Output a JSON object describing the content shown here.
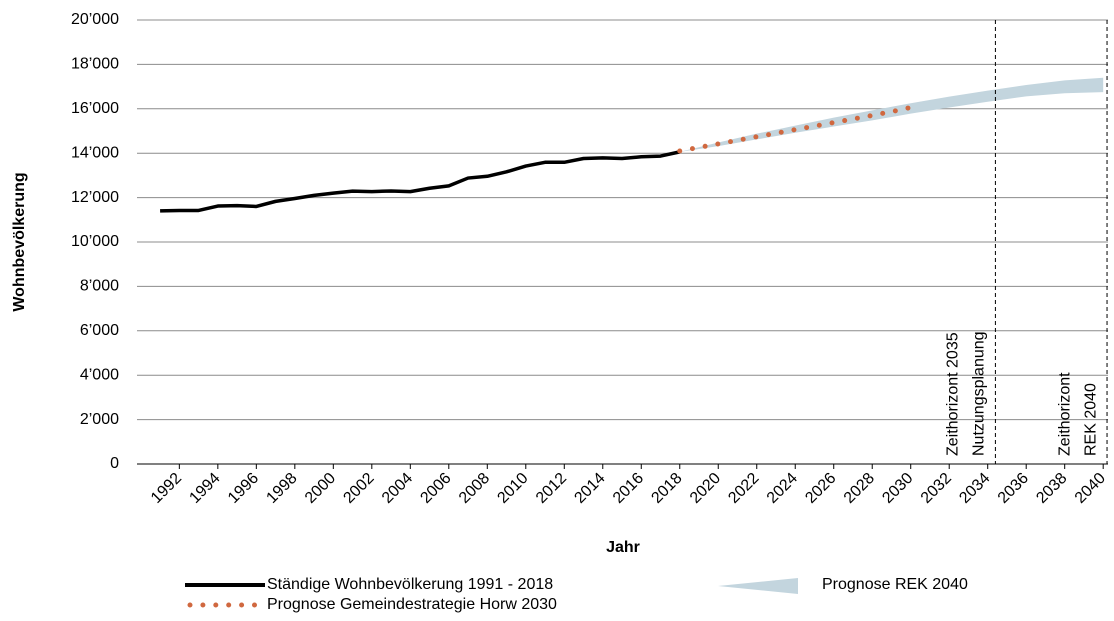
{
  "chart_data": {
    "type": "line",
    "x_label": "Jahr",
    "y_label": "Wohnbevölkerung",
    "xlim": [
      1989.8,
      2040.25
    ],
    "xticks": [
      1992,
      1994,
      1996,
      1998,
      2000,
      2002,
      2004,
      2006,
      2008,
      2010,
      2012,
      2014,
      2016,
      2018,
      2020,
      2022,
      2024,
      2026,
      2028,
      2030,
      2032,
      2034,
      2036,
      2038,
      2040
    ],
    "ylim": [
      0,
      20000
    ],
    "yticks": [
      {
        "value": 0,
        "label": "0"
      },
      {
        "value": 2000,
        "label": "2’000"
      },
      {
        "value": 4000,
        "label": "4’000"
      },
      {
        "value": 6000,
        "label": "6’000"
      },
      {
        "value": 8000,
        "label": "8’000"
      },
      {
        "value": 10000,
        "label": "10’000"
      },
      {
        "value": 12000,
        "label": "12’000"
      },
      {
        "value": 14000,
        "label": "14’000"
      },
      {
        "value": 16000,
        "label": "16’000"
      },
      {
        "value": 18000,
        "label": "18’000"
      },
      {
        "value": 20000,
        "label": "20’000"
      }
    ],
    "grid": true,
    "series": [
      {
        "name": "Ständige Wohnbevölkerung 1991 - 2018",
        "color": "#000000",
        "style": "solid",
        "x": [
          1991,
          1992,
          1993,
          1994,
          1995,
          1996,
          1997,
          1998,
          1999,
          2000,
          2001,
          2002,
          2003,
          2004,
          2005,
          2006,
          2007,
          2008,
          2009,
          2010,
          2011,
          2012,
          2013,
          2014,
          2015,
          2016,
          2017,
          2018
        ],
        "values": [
          11400,
          11420,
          11420,
          11620,
          11640,
          11600,
          11830,
          11960,
          12100,
          12200,
          12290,
          12270,
          12300,
          12270,
          12420,
          12530,
          12880,
          12960,
          13160,
          13420,
          13590,
          13590,
          13760,
          13790,
          13760,
          13840,
          13870,
          14060
        ]
      },
      {
        "name": "Prognose Gemeindestrategie Horw 2030",
        "color": "#d0683f",
        "style": "dotted",
        "x": [
          2018,
          2019,
          2020,
          2021,
          2022,
          2023,
          2024,
          2025,
          2026,
          2027,
          2028,
          2029,
          2030
        ],
        "values": [
          14100,
          14260,
          14420,
          14580,
          14740,
          14900,
          15060,
          15220,
          15380,
          15540,
          15700,
          15870,
          16060
        ]
      }
    ],
    "band": {
      "name": "Prognose REK 2040",
      "color": "#c3d5de",
      "x": [
        2018,
        2020,
        2022,
        2024,
        2026,
        2028,
        2030,
        2032,
        2034,
        2036,
        2038,
        2040
      ],
      "lower": [
        14060,
        14320,
        14620,
        14920,
        15200,
        15480,
        15780,
        16060,
        16320,
        16560,
        16700,
        16750
      ],
      "upper": [
        14060,
        14480,
        14880,
        15240,
        15600,
        15930,
        16250,
        16550,
        16820,
        17070,
        17280,
        17400
      ]
    },
    "annotations": [
      {
        "x": 2034.4,
        "lines": [
          "Zeithorizont 2035",
          "Nutzungsplanung"
        ]
      },
      {
        "x": 2040.2,
        "lines": [
          "Zeithorizont",
          "REK 2040"
        ]
      }
    ]
  }
}
